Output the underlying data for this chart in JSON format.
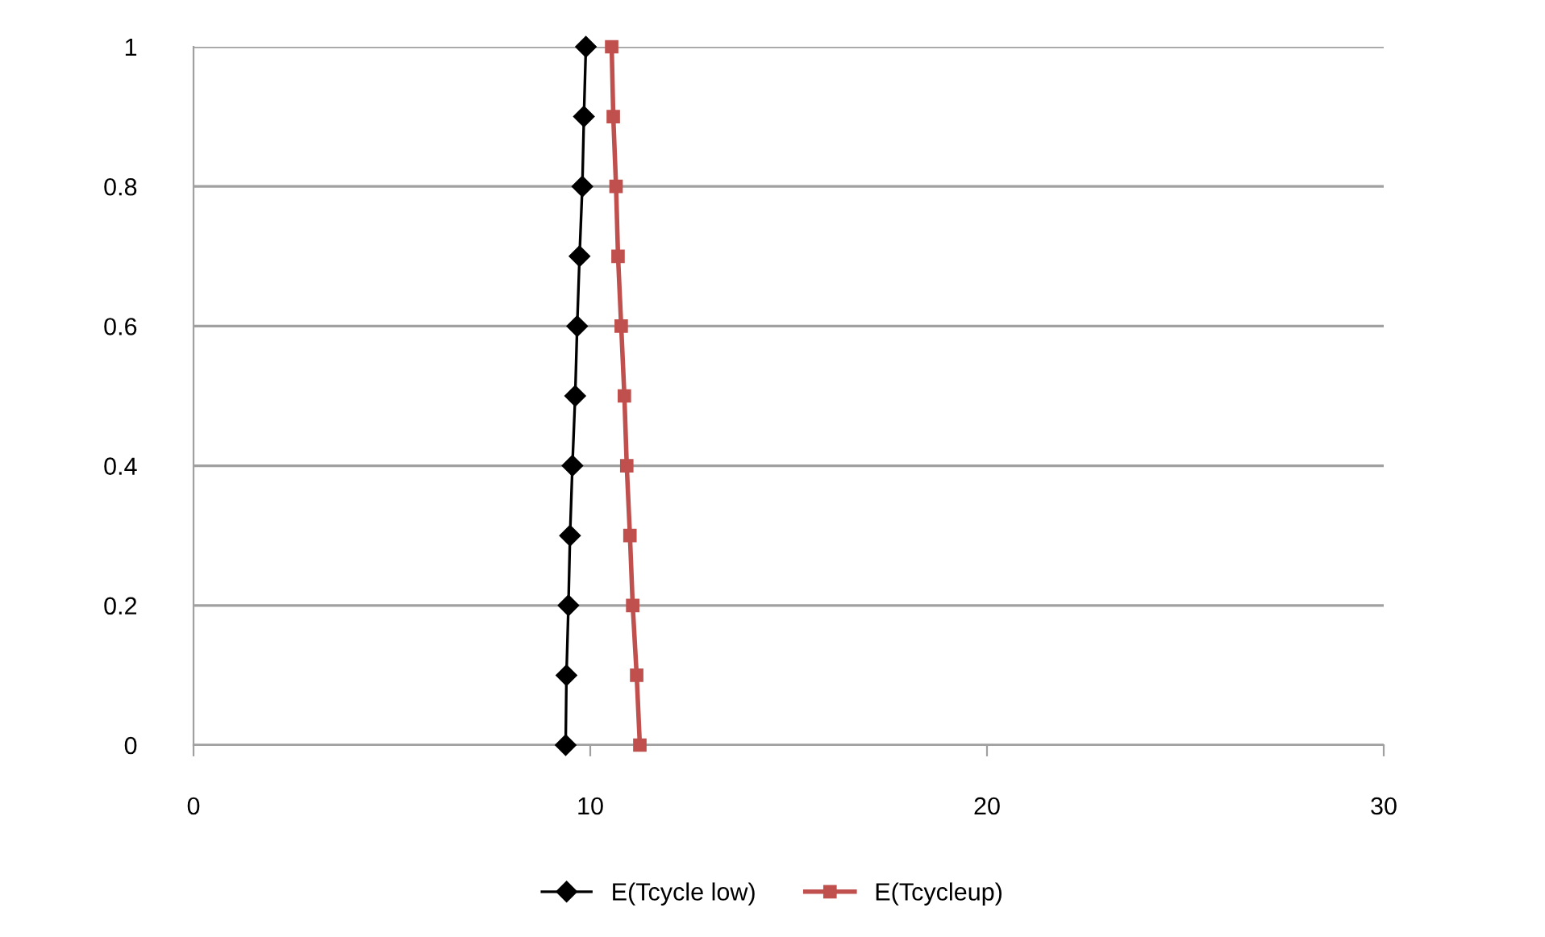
{
  "chart_data": {
    "type": "line",
    "x": [
      9.38,
      9.4,
      9.45,
      9.49,
      9.55,
      9.62,
      9.67,
      9.73,
      9.8,
      9.84,
      9.89
    ],
    "series": [
      {
        "name": "E(Tcycle low)",
        "color": "#000000",
        "marker": "diamond",
        "values": [
          0,
          0.1,
          0.2,
          0.3,
          0.4,
          0.5,
          0.6,
          0.7,
          0.8,
          0.9,
          1
        ]
      },
      {
        "name": "E(Tcycleup)",
        "color": "#c0504d",
        "marker": "square",
        "x": [
          11.25,
          11.17,
          11.07,
          11.0,
          10.92,
          10.86,
          10.78,
          10.7,
          10.65,
          10.58,
          10.54
        ],
        "values": [
          0,
          0.1,
          0.2,
          0.3,
          0.4,
          0.5,
          0.6,
          0.7,
          0.8,
          0.9,
          1
        ]
      }
    ],
    "xlim": [
      0,
      30
    ],
    "xticks": [
      0,
      10,
      20,
      30
    ],
    "ylim": [
      0,
      1
    ],
    "yticks": [
      0,
      0.2,
      0.4,
      0.6,
      0.8,
      1
    ],
    "grid": "y",
    "legend": "bottom",
    "line_style": "solid"
  }
}
